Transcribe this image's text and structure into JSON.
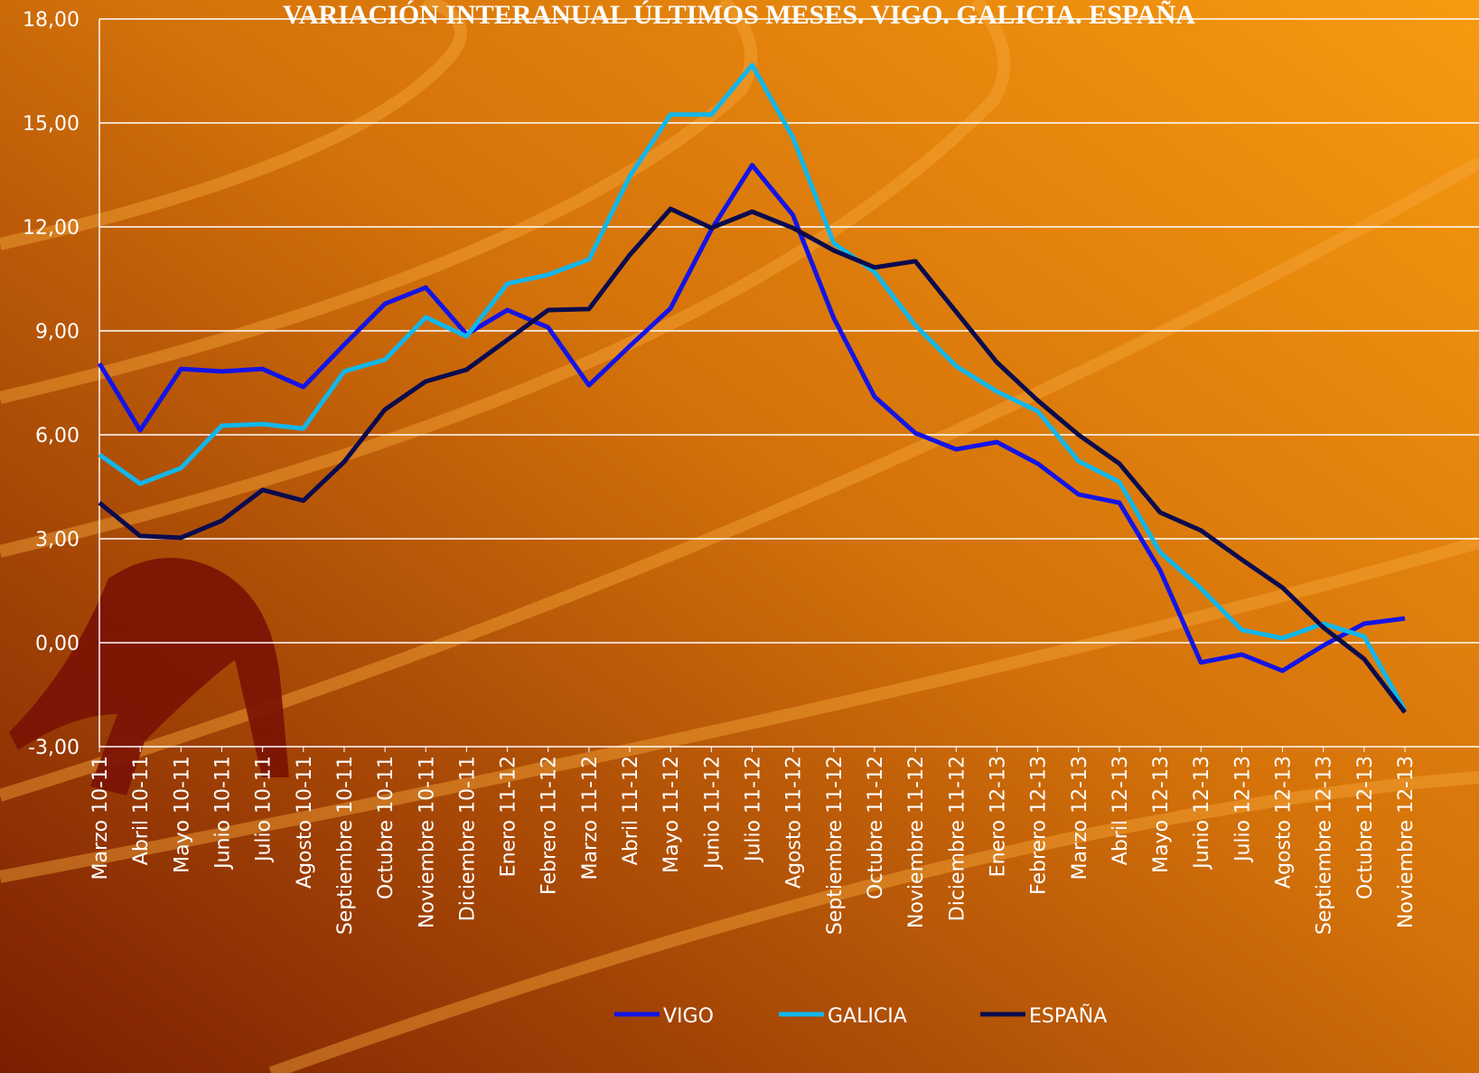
{
  "chart_data": {
    "type": "line",
    "title": "VARIACIÓN INTERANUAL ÚLTIMOS MESES. VIGO. GALICIA. ESPAÑA",
    "categories": [
      "Marzo 10-11",
      "Abril 10-11",
      "Mayo 10-11",
      "Junio 10-11",
      "Julio 10-11",
      "Agosto 10-11",
      "Septiembre 10-11",
      "Octubre 10-11",
      "Noviembre 10-11",
      "Diciembre 10-11",
      "Enero 11-12",
      "Febrero 11-12",
      "Marzo 11-12",
      "Abril 11-12",
      "Mayo 11-12",
      "Junio 11-12",
      "Julio 11-12",
      "Agosto 11-12",
      "Septiembre 11-12",
      "Octubre 11-12",
      "Noviembre 11-12",
      "Diciembre 11-12",
      "Enero 12-13",
      "Febrero 12-13",
      "Marzo 12-13",
      "Abril 12-13",
      "Mayo 12-13",
      "Junio 12-13",
      "Julio 12-13",
      "Agosto 12-13",
      "Septiembre 12-13",
      "Octubre 12-13",
      "Noviembre 12-13"
    ],
    "series": [
      {
        "name": "VIGO",
        "color": "#1414e6",
        "values": [
          8.06,
          6.13,
          7.9,
          7.83,
          7.9,
          7.38,
          8.6,
          9.78,
          10.25,
          8.9,
          9.6,
          9.1,
          7.43,
          8.56,
          9.65,
          11.92,
          13.78,
          12.34,
          9.37,
          7.1,
          6.05,
          5.58,
          5.79,
          5.17,
          4.28,
          4.04,
          2.09,
          -0.57,
          -0.34,
          -0.81,
          -0.08,
          0.55,
          0.7
        ]
      },
      {
        "name": "GALICIA",
        "color": "#12b6ea",
        "values": [
          5.43,
          4.59,
          5.04,
          6.26,
          6.31,
          6.18,
          7.83,
          8.17,
          9.39,
          8.84,
          10.36,
          10.62,
          11.06,
          13.46,
          15.24,
          15.24,
          16.67,
          14.58,
          11.53,
          10.7,
          9.16,
          7.98,
          7.25,
          6.68,
          5.24,
          4.64,
          2.61,
          1.57,
          0.37,
          0.13,
          0.55,
          0.18,
          -1.96
        ]
      },
      {
        "name": "ESPAÑA",
        "color": "#0b0b4e",
        "values": [
          4.04,
          3.08,
          3.03,
          3.52,
          4.41,
          4.1,
          5.22,
          6.73,
          7.54,
          7.88,
          8.74,
          9.6,
          9.63,
          11.19,
          12.52,
          11.97,
          12.44,
          11.97,
          11.32,
          10.83,
          11.01,
          9.55,
          8.09,
          6.99,
          6.0,
          5.17,
          3.76,
          3.24,
          2.4,
          1.59,
          0.44,
          -0.47,
          -2.01
        ]
      }
    ],
    "ylim": [
      -3,
      18
    ],
    "yticks": [
      {
        "value": -3,
        "label": "-3,00"
      },
      {
        "value": 0,
        "label": "0,00"
      },
      {
        "value": 3,
        "label": "3,00"
      },
      {
        "value": 6,
        "label": "6,00"
      },
      {
        "value": 9,
        "label": "9,00"
      },
      {
        "value": 12,
        "label": "12,00"
      },
      {
        "value": 15,
        "label": "15,00"
      },
      {
        "value": 18,
        "label": "18,00"
      }
    ],
    "grid": true
  }
}
